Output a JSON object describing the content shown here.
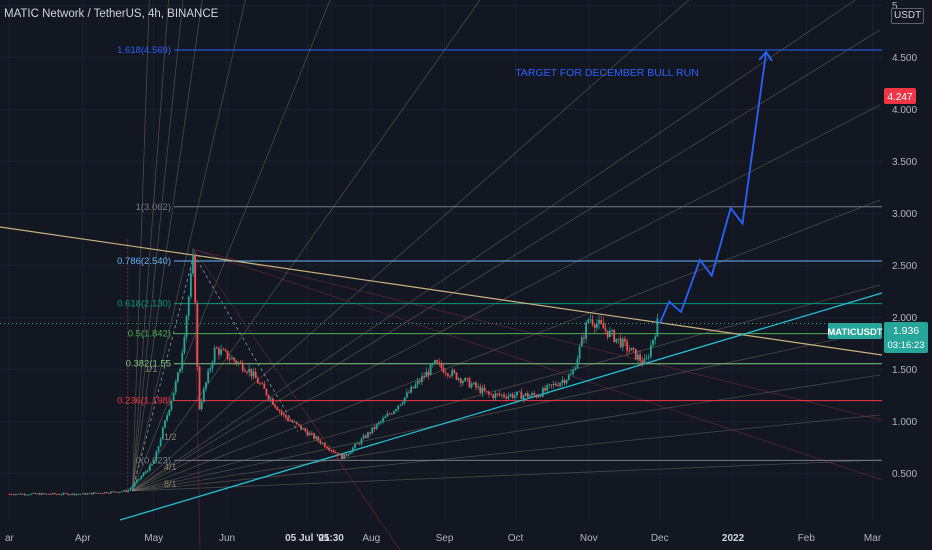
{
  "header": {
    "title": "MATIC Network / TetherUS, 4h, BINANCE",
    "unit": "USDT"
  },
  "colors": {
    "background": "#131722",
    "grid": "#1c2030",
    "text": "#b2b5be",
    "accent_blue": "#2962ff",
    "teal": "#26a69a"
  },
  "chart_data": {
    "type": "candlestick",
    "y_ticks": [
      "0.500",
      "1.000",
      "1.500",
      "2.000",
      "2.500",
      "3.000",
      "3.500",
      "4.000",
      "4.500",
      "5"
    ],
    "x_ticks": [
      "ar",
      "Apr",
      "May",
      "Jun",
      "05 Jul '21",
      "05:30",
      "Aug",
      "Sep",
      "Oct",
      "Nov",
      "Dec",
      "2022",
      "Feb",
      "Mar"
    ],
    "price_series_approx": [
      {
        "date": "2021-03-01",
        "close": 0.3
      },
      {
        "date": "2021-04-01",
        "close": 0.3
      },
      {
        "date": "2021-04-20",
        "close": 0.33
      },
      {
        "date": "2021-05-01",
        "close": 0.6
      },
      {
        "date": "2021-05-12",
        "close": 1.5
      },
      {
        "date": "2021-05-18",
        "close": 2.6
      },
      {
        "date": "2021-05-20",
        "close": 1.1
      },
      {
        "date": "2021-05-27",
        "close": 1.7
      },
      {
        "date": "2021-06-10",
        "close": 1.5
      },
      {
        "date": "2021-06-25",
        "close": 1.05
      },
      {
        "date": "2021-07-20",
        "close": 0.65
      },
      {
        "date": "2021-08-10",
        "close": 1.1
      },
      {
        "date": "2021-08-28",
        "close": 1.55
      },
      {
        "date": "2021-09-20",
        "close": 1.25
      },
      {
        "date": "2021-10-10",
        "close": 1.25
      },
      {
        "date": "2021-10-25",
        "close": 1.45
      },
      {
        "date": "2021-11-01",
        "close": 2.0
      },
      {
        "date": "2021-11-15",
        "close": 1.75
      },
      {
        "date": "2021-11-25",
        "close": 1.55
      },
      {
        "date": "2021-11-30",
        "close": 1.94
      }
    ],
    "fib_levels": [
      {
        "label": "1.618(4.569)",
        "value": 4.569,
        "color": "#2962ff"
      },
      {
        "label": "1(3.062)",
        "value": 3.062,
        "color": "#787b86"
      },
      {
        "label": "0.786(2.540)",
        "value": 2.54,
        "color": "#64b5f6"
      },
      {
        "label": "0.618(2.130)",
        "value": 2.13,
        "color": "#089981"
      },
      {
        "label": "0.5(1.842)",
        "value": 1.842,
        "color": "#4caf50"
      },
      {
        "label": "0.382(1.55",
        "value": 1.553,
        "color": "#81c784"
      },
      {
        "label": "0.236(1.198)",
        "value": 1.198,
        "color": "#f23645"
      },
      {
        "label": "0(0.623)",
        "value": 0.623,
        "color": "#787b86"
      }
    ],
    "gann_labels": [
      "1/2",
      "4/1",
      "8/1",
      "1/1"
    ],
    "projection_path": [
      {
        "date": "2021-12-01",
        "value": 1.94
      },
      {
        "date": "2021-12-05",
        "value": 2.15
      },
      {
        "date": "2021-12-10",
        "value": 2.05
      },
      {
        "date": "2021-12-18",
        "value": 2.55
      },
      {
        "date": "2021-12-23",
        "value": 2.4
      },
      {
        "date": "2021-12-31",
        "value": 3.05
      },
      {
        "date": "2022-01-05",
        "value": 2.9
      },
      {
        "date": "2022-01-15",
        "value": 4.55
      }
    ],
    "annotation": "TARGET FOR DECEMBER BULL RUN",
    "price_tags": {
      "target": "4.247",
      "symbol": "MATICUSDT",
      "last": "1.936",
      "countdown": "03:16:23"
    }
  }
}
